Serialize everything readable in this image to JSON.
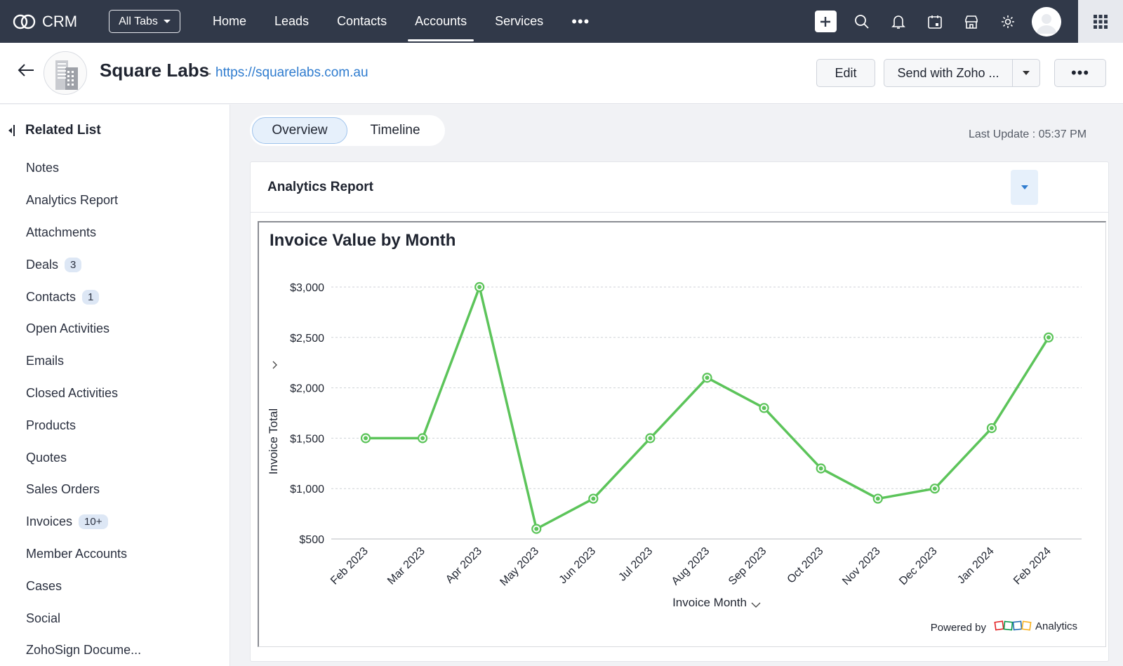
{
  "topbar": {
    "brand": "CRM",
    "all_tabs": "All Tabs",
    "nav": [
      "Home",
      "Leads",
      "Contacts",
      "Accounts",
      "Services"
    ],
    "active_nav": "Accounts",
    "more": "•••"
  },
  "header": {
    "account_name": "Square Labs",
    "separator": "-",
    "url": "https://squarelabs.com.au",
    "edit_label": "Edit",
    "send_label": "Send with Zoho ...",
    "more_label": "•••"
  },
  "sidebar": {
    "title": "Related List",
    "items": [
      {
        "label": "Notes",
        "badge": ""
      },
      {
        "label": "Analytics Report",
        "badge": ""
      },
      {
        "label": "Attachments",
        "badge": ""
      },
      {
        "label": "Deals",
        "badge": "3"
      },
      {
        "label": "Contacts",
        "badge": "1"
      },
      {
        "label": "Open Activities",
        "badge": ""
      },
      {
        "label": "Emails",
        "badge": ""
      },
      {
        "label": "Closed Activities",
        "badge": ""
      },
      {
        "label": "Products",
        "badge": ""
      },
      {
        "label": "Quotes",
        "badge": ""
      },
      {
        "label": "Sales Orders",
        "badge": ""
      },
      {
        "label": "Invoices",
        "badge": "10+"
      },
      {
        "label": "Member Accounts",
        "badge": ""
      },
      {
        "label": "Cases",
        "badge": ""
      },
      {
        "label": "Social",
        "badge": ""
      },
      {
        "label": "ZohoSign Docume...",
        "badge": ""
      }
    ]
  },
  "main": {
    "tabs": [
      "Overview",
      "Timeline"
    ],
    "active_tab": "Overview",
    "last_update": "Last Update : 05:37 PM",
    "card_title": "Analytics Report",
    "powered_by": "Powered by",
    "powered_brand": "Analytics"
  },
  "colors": {
    "topbar": "#313949",
    "line": "#5cc45a",
    "link": "#2f7ccf"
  },
  "chart_data": {
    "type": "line",
    "title": "Invoice Value by Month",
    "xlabel": "Invoice Month",
    "ylabel": "Invoice Total",
    "categories": [
      "Feb 2023",
      "Mar 2023",
      "Apr 2023",
      "May 2023",
      "Jun 2023",
      "Jul 2023",
      "Aug 2023",
      "Sep 2023",
      "Oct 2023",
      "Nov 2023",
      "Dec 2023",
      "Jan 2024",
      "Feb 2024"
    ],
    "values": [
      1500,
      1500,
      3000,
      600,
      900,
      1500,
      2100,
      1800,
      1200,
      900,
      1000,
      1600,
      2500
    ],
    "ylim": [
      500,
      3000
    ],
    "yticks": [
      500,
      1000,
      1500,
      2000,
      2500,
      3000
    ],
    "ytick_labels": [
      "$500",
      "$1,000",
      "$1,500",
      "$2,000",
      "$2,500",
      "$3,000"
    ],
    "grid": true,
    "legend": "none"
  }
}
